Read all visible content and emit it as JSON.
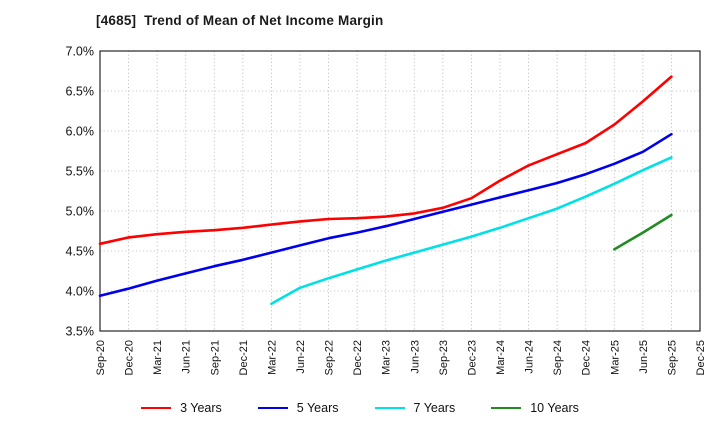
{
  "header": {
    "title": "[4685]  Trend of Mean of Net Income Margin"
  },
  "chart_data": {
    "type": "line",
    "title": "[4685]  Trend of Mean of Net Income Margin",
    "categories": [
      "Sep-20",
      "Dec-20",
      "Mar-21",
      "Jun-21",
      "Sep-21",
      "Dec-21",
      "Mar-22",
      "Jun-22",
      "Sep-22",
      "Dec-22",
      "Mar-23",
      "Jun-23",
      "Sep-23",
      "Dec-23",
      "Mar-24",
      "Jun-24",
      "Sep-24",
      "Dec-24",
      "Mar-25",
      "Jun-25",
      "Sep-25",
      "Dec-25"
    ],
    "series": [
      {
        "name": "3 Years",
        "color": "#ff0000",
        "values": [
          4.59,
          4.67,
          4.71,
          4.74,
          4.76,
          4.79,
          4.83,
          4.87,
          4.9,
          4.91,
          4.93,
          4.97,
          5.04,
          5.16,
          5.38,
          5.57,
          5.71,
          5.85,
          6.08,
          6.37,
          6.68,
          null
        ]
      },
      {
        "name": "5 Years",
        "color": "#0000ee",
        "values": [
          3.94,
          4.03,
          4.13,
          4.22,
          4.31,
          4.39,
          4.48,
          4.57,
          4.66,
          4.73,
          4.81,
          4.9,
          4.99,
          5.08,
          5.17,
          5.26,
          5.35,
          5.46,
          5.59,
          5.74,
          5.96,
          null
        ]
      },
      {
        "name": "7 Years",
        "color": "#00e0e6",
        "values": [
          null,
          null,
          null,
          null,
          null,
          null,
          3.84,
          4.04,
          4.16,
          4.27,
          4.38,
          4.48,
          4.58,
          4.68,
          4.79,
          4.91,
          5.03,
          5.18,
          5.34,
          5.51,
          5.67,
          null
        ]
      },
      {
        "name": "10 Years",
        "color": "#228b22",
        "values": [
          null,
          null,
          null,
          null,
          null,
          null,
          null,
          null,
          null,
          null,
          null,
          null,
          null,
          null,
          null,
          null,
          null,
          null,
          4.52,
          4.73,
          4.95,
          null
        ]
      }
    ],
    "xlabel": "",
    "ylabel": "",
    "ylim": [
      3.5,
      7.0
    ],
    "ytick_step": 0.5,
    "ytick_labels": [
      "3.5%",
      "4.0%",
      "4.5%",
      "5.0%",
      "5.5%",
      "6.0%",
      "6.5%",
      "7.0%"
    ],
    "grid": true,
    "legend_position": "bottom"
  }
}
